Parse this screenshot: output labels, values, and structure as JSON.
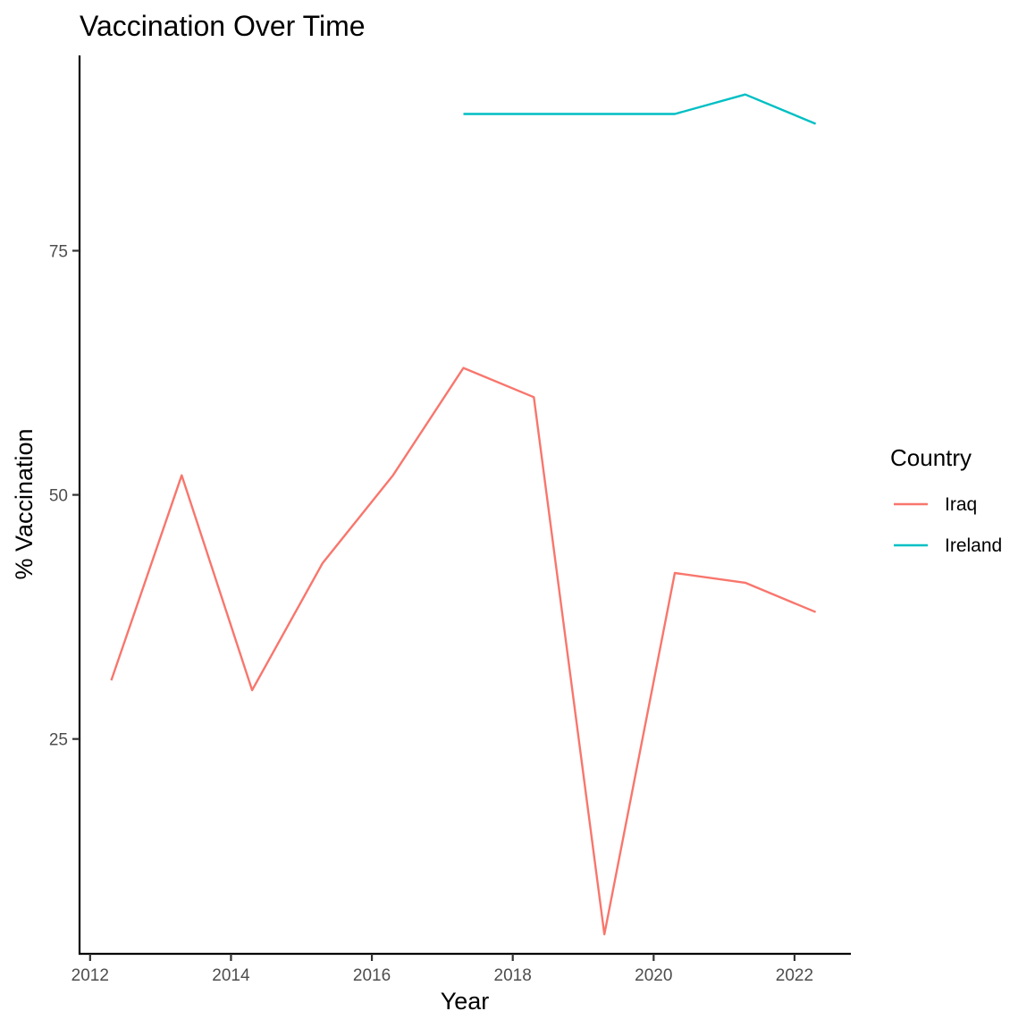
{
  "chart_data": {
    "type": "line",
    "title": "Vaccination Over Time",
    "xlabel": "Year",
    "ylabel": "% Vaccination",
    "xlim": [
      2011.85,
      2022.8
    ],
    "ylim": [
      3,
      95
    ],
    "x_ticks": [
      2012,
      2014,
      2016,
      2018,
      2020,
      2022
    ],
    "y_ticks": [
      25,
      50,
      75
    ],
    "grid": false,
    "legend": {
      "title": "Country",
      "position": "right"
    },
    "series": [
      {
        "name": "Iraq",
        "color": "#F8766D",
        "x": [
          2012.3,
          2013.3,
          2014.3,
          2015.3,
          2016.3,
          2017.3,
          2018.3,
          2019.3,
          2020.3,
          2021.3,
          2022.3
        ],
        "y": [
          31,
          52,
          30,
          43,
          52,
          63,
          60,
          5,
          42,
          41,
          38
        ]
      },
      {
        "name": "Ireland",
        "color": "#00BFC4",
        "x": [
          2017.3,
          2018.3,
          2019.3,
          2020.3,
          2021.3,
          2022.3
        ],
        "y": [
          89,
          89,
          89,
          89,
          91,
          88
        ]
      }
    ]
  }
}
